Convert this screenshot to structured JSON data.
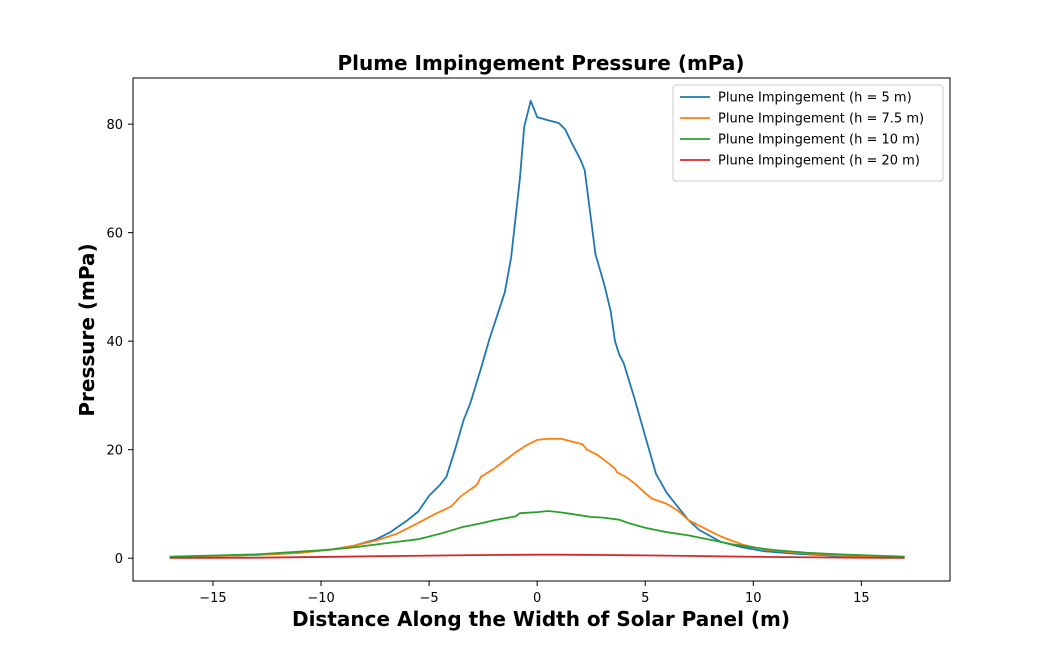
{
  "chart_data": {
    "type": "line",
    "title": "Plume Impingement Pressure (mPa)",
    "xlabel": "Distance Along the Width of Solar Panel (m)",
    "ylabel": "Pressure (mPa)",
    "xlim": [
      -18.7,
      19.1
    ],
    "ylim": [
      -4.2,
      88.5
    ],
    "xticks": [
      -15,
      -10,
      -5,
      0,
      5,
      10,
      15
    ],
    "yticks": [
      0,
      20,
      40,
      60,
      80
    ],
    "grid": false,
    "legend_position": "top-right",
    "series": [
      {
        "name": "Plune Impingement (h = 5 m)",
        "color": "#1f77b4",
        "points": [
          [
            -17,
            0.2
          ],
          [
            -15,
            0.4
          ],
          [
            -13,
            0.6
          ],
          [
            -11,
            1.0
          ],
          [
            -9.5,
            1.6
          ],
          [
            -8.5,
            2.3
          ],
          [
            -7.5,
            3.4
          ],
          [
            -6.8,
            4.8
          ],
          [
            -6,
            7.0
          ],
          [
            -5.5,
            8.6
          ],
          [
            -5,
            11.5
          ],
          [
            -4.5,
            13.5
          ],
          [
            -4.2,
            15.0
          ],
          [
            -3.8,
            20.0
          ],
          [
            -3.4,
            25.5
          ],
          [
            -3.1,
            28.5
          ],
          [
            -2.6,
            35.0
          ],
          [
            -2.2,
            40.5
          ],
          [
            -1.5,
            49.0
          ],
          [
            -1.2,
            55.5
          ],
          [
            -0.8,
            70.0
          ],
          [
            -0.6,
            79.5
          ],
          [
            -0.3,
            84.3
          ],
          [
            0.0,
            81.3
          ],
          [
            0.5,
            80.7
          ],
          [
            1.0,
            80.2
          ],
          [
            1.3,
            79.0
          ],
          [
            1.6,
            76.5
          ],
          [
            2.0,
            73.5
          ],
          [
            2.2,
            71.5
          ],
          [
            2.7,
            56.0
          ],
          [
            3.1,
            50.5
          ],
          [
            3.4,
            45.5
          ],
          [
            3.6,
            40.0
          ],
          [
            3.8,
            37.5
          ],
          [
            4.0,
            36.0
          ],
          [
            4.5,
            29.5
          ],
          [
            5.0,
            22.5
          ],
          [
            5.5,
            15.5
          ],
          [
            6.0,
            12.0
          ],
          [
            6.5,
            9.5
          ],
          [
            7.0,
            7.0
          ],
          [
            7.5,
            5.2
          ],
          [
            8.5,
            3.0
          ],
          [
            9.5,
            2.0
          ],
          [
            10.5,
            1.3
          ],
          [
            12,
            0.8
          ],
          [
            14,
            0.4
          ],
          [
            17,
            0.2
          ]
        ]
      },
      {
        "name": "Plune Impingement (h = 7.5 m)",
        "color": "#ff7f0e",
        "points": [
          [
            -17,
            0.2
          ],
          [
            -15,
            0.4
          ],
          [
            -13,
            0.6
          ],
          [
            -11,
            1.0
          ],
          [
            -9.5,
            1.6
          ],
          [
            -8.5,
            2.3
          ],
          [
            -7.5,
            3.2
          ],
          [
            -6.5,
            4.5
          ],
          [
            -5.5,
            6.5
          ],
          [
            -4.8,
            8.0
          ],
          [
            -4.0,
            9.5
          ],
          [
            -3.5,
            11.5
          ],
          [
            -2.8,
            13.5
          ],
          [
            -2.6,
            15.0
          ],
          [
            -2.0,
            16.5
          ],
          [
            -1.5,
            18.0
          ],
          [
            -1.0,
            19.5
          ],
          [
            -0.5,
            20.8
          ],
          [
            0.0,
            21.8
          ],
          [
            0.5,
            22.0
          ],
          [
            1.1,
            22.0
          ],
          [
            1.6,
            21.5
          ],
          [
            2.1,
            21.0
          ],
          [
            2.3,
            20.0
          ],
          [
            2.8,
            19.0
          ],
          [
            3.3,
            17.5
          ],
          [
            3.6,
            16.5
          ],
          [
            3.7,
            15.8
          ],
          [
            4.1,
            15.0
          ],
          [
            4.5,
            13.8
          ],
          [
            5.0,
            12.0
          ],
          [
            5.3,
            11.0
          ],
          [
            6.0,
            10.0
          ],
          [
            6.5,
            8.8
          ],
          [
            7.0,
            7.0
          ],
          [
            7.5,
            6.0
          ],
          [
            8.5,
            4.0
          ],
          [
            9.5,
            2.5
          ],
          [
            10.5,
            1.6
          ],
          [
            12,
            1.0
          ],
          [
            14,
            0.5
          ],
          [
            17,
            0.2
          ]
        ]
      },
      {
        "name": "Plune Impingement (h = 10 m)",
        "color": "#2ca02c",
        "points": [
          [
            -17,
            0.3
          ],
          [
            -15,
            0.5
          ],
          [
            -13,
            0.7
          ],
          [
            -11,
            1.2
          ],
          [
            -9.5,
            1.6
          ],
          [
            -8.5,
            2.0
          ],
          [
            -7.5,
            2.5
          ],
          [
            -6.5,
            3.0
          ],
          [
            -5.5,
            3.5
          ],
          [
            -4.5,
            4.5
          ],
          [
            -3.5,
            5.7
          ],
          [
            -2.5,
            6.5
          ],
          [
            -2.0,
            7.0
          ],
          [
            -1.0,
            7.7
          ],
          [
            -0.8,
            8.3
          ],
          [
            0.0,
            8.5
          ],
          [
            0.5,
            8.7
          ],
          [
            1.0,
            8.5
          ],
          [
            1.5,
            8.2
          ],
          [
            2.0,
            7.9
          ],
          [
            2.5,
            7.6
          ],
          [
            3.0,
            7.5
          ],
          [
            3.8,
            7.1
          ],
          [
            4.2,
            6.5
          ],
          [
            5.0,
            5.6
          ],
          [
            6.0,
            4.8
          ],
          [
            7.0,
            4.2
          ],
          [
            8.0,
            3.4
          ],
          [
            9.0,
            2.6
          ],
          [
            10,
            2.0
          ],
          [
            11,
            1.5
          ],
          [
            12.5,
            1.0
          ],
          [
            14,
            0.7
          ],
          [
            17,
            0.3
          ]
        ]
      },
      {
        "name": "Plune Impingement (h = 20 m)",
        "color": "#d62728",
        "points": [
          [
            -17,
            0.05
          ],
          [
            -15,
            0.07
          ],
          [
            -13,
            0.1
          ],
          [
            -11,
            0.18
          ],
          [
            -9,
            0.27
          ],
          [
            -7,
            0.38
          ],
          [
            -5,
            0.48
          ],
          [
            -3,
            0.57
          ],
          [
            -1,
            0.63
          ],
          [
            0,
            0.65
          ],
          [
            1,
            0.65
          ],
          [
            3,
            0.6
          ],
          [
            5,
            0.52
          ],
          [
            7,
            0.42
          ],
          [
            9,
            0.32
          ],
          [
            11,
            0.22
          ],
          [
            13,
            0.15
          ],
          [
            15,
            0.09
          ],
          [
            17,
            0.06
          ]
        ]
      }
    ]
  }
}
